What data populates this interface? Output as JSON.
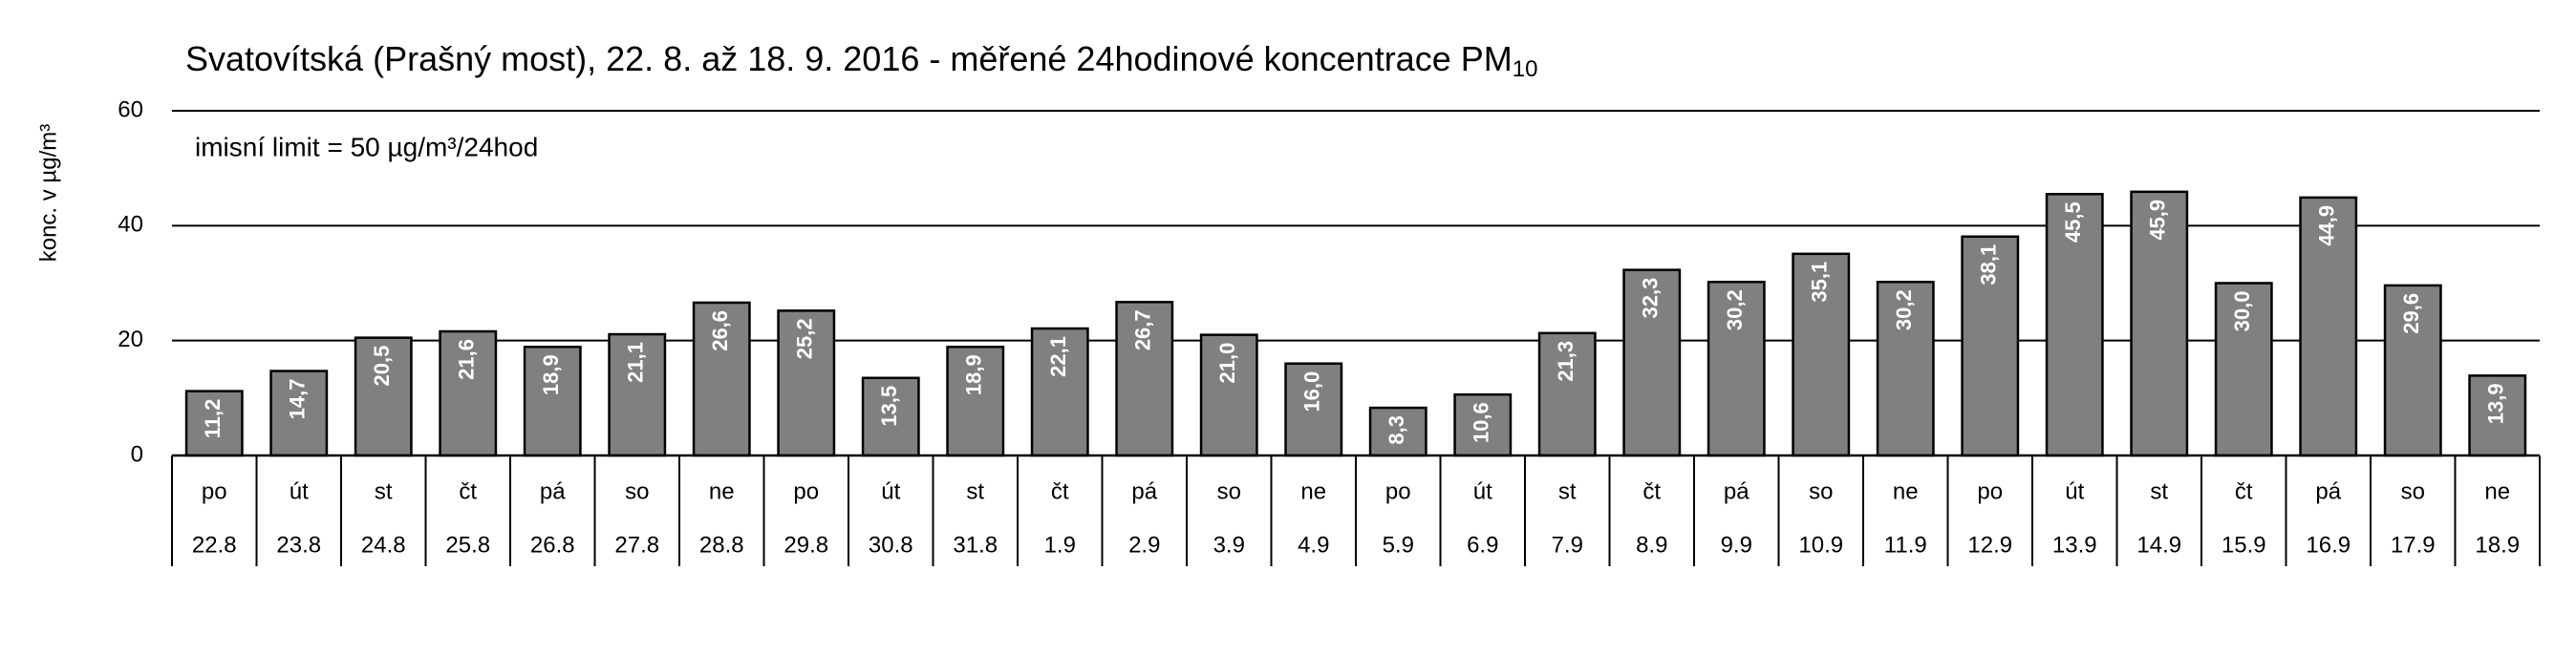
{
  "chart_data": {
    "type": "bar",
    "title": "Svatovítská (Prašný most), 22. 8. až 18. 9. 2016 - měřené 24hodinové koncentrace PM",
    "title_subscript": "10",
    "y_label": "konc. v µg/m³",
    "annotation": "imisní limit = 50 µg/m³/24hod",
    "categories": [
      "po",
      "út",
      "st",
      "čt",
      "pá",
      "so",
      "ne",
      "po",
      "út",
      "st",
      "čt",
      "pá",
      "so",
      "ne",
      "po",
      "út",
      "st",
      "čt",
      "pá",
      "so",
      "ne",
      "po",
      "út",
      "st",
      "čt",
      "pá",
      "so",
      "ne"
    ],
    "dates": [
      "22.8",
      "23.8",
      "24.8",
      "25.8",
      "26.8",
      "27.8",
      "28.8",
      "29.8",
      "30.8",
      "31.8",
      "1.9",
      "2.9",
      "3.9",
      "4.9",
      "5.9",
      "6.9",
      "7.9",
      "8.9",
      "9.9",
      "10.9",
      "11.9",
      "12.9",
      "13.9",
      "14.9",
      "15.9",
      "16.9",
      "17.9",
      "18.9"
    ],
    "values": [
      11.2,
      14.7,
      20.5,
      21.6,
      18.9,
      21.1,
      26.6,
      25.2,
      13.5,
      18.9,
      22.1,
      26.7,
      21.0,
      16.0,
      8.3,
      10.6,
      21.3,
      32.3,
      30.2,
      35.1,
      30.2,
      38.1,
      45.5,
      45.9,
      30.0,
      44.9,
      29.6,
      13.9
    ],
    "value_labels": [
      "11,2",
      "14,7",
      "20,5",
      "21,6",
      "18,9",
      "21,1",
      "26,6",
      "25,2",
      "13,5",
      "18,9",
      "22,1",
      "26,7",
      "21,0",
      "16,0",
      "8,3",
      "10,6",
      "21,3",
      "32,3",
      "30,2",
      "35,1",
      "30,2",
      "38,1",
      "45,5",
      "45,9",
      "30,0",
      "44,9",
      "29,6",
      "13,9"
    ],
    "color": "#808080",
    "ylim": [
      0,
      60
    ],
    "yticks": [
      0,
      20,
      40,
      60
    ],
    "grid": true
  }
}
